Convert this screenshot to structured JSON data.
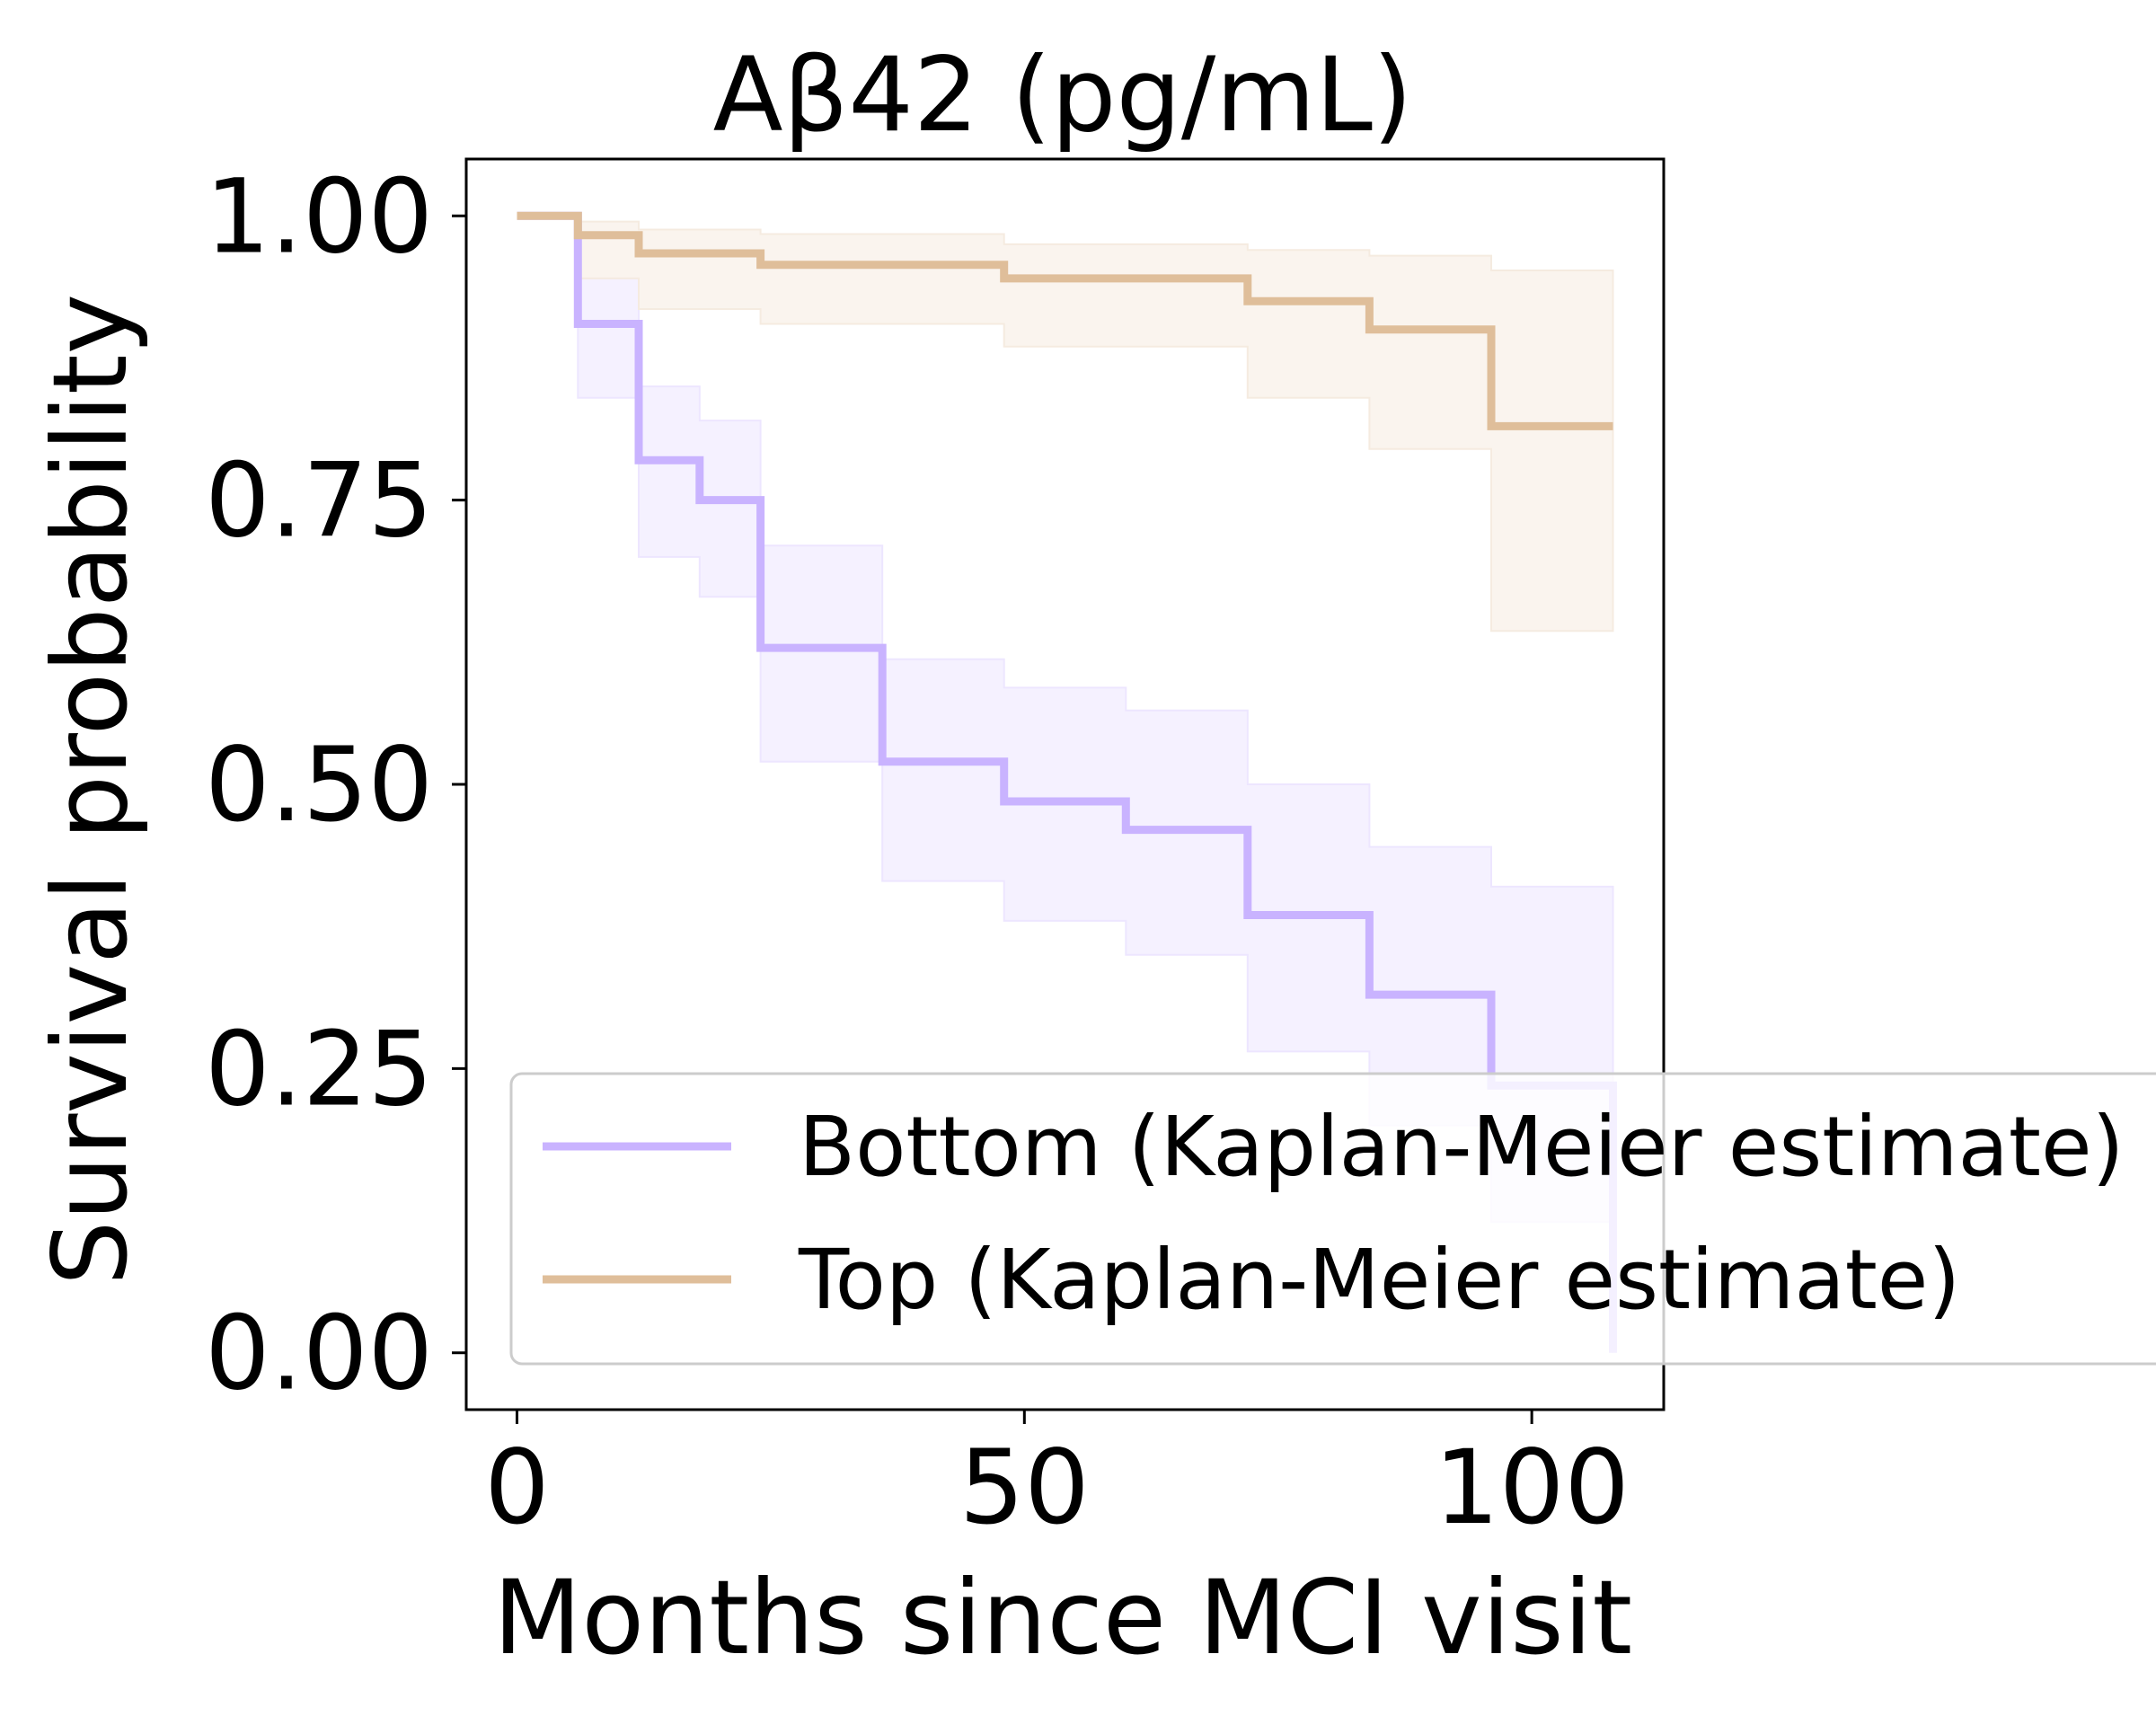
{
  "chart_data": {
    "type": "line",
    "title": "Aβ42 (pg/mL)",
    "xlabel": "Months since MCI visit",
    "ylabel": "Survival probability",
    "xlim": [
      -5,
      113
    ],
    "ylim": [
      -0.05,
      1.05
    ],
    "xticks": [
      0,
      50,
      100
    ],
    "xtick_labels": [
      "0",
      "50",
      "100"
    ],
    "yticks": [
      0.0,
      0.25,
      0.5,
      0.75,
      1.0
    ],
    "ytick_labels": [
      "0.00",
      "0.25",
      "0.50",
      "0.75",
      "1.00"
    ],
    "grid": false,
    "legend_position": "lower-right",
    "series": [
      {
        "name": "Bottom (Kaplan-Meier estimate)",
        "color": "#c9b3ff",
        "ci_color": "#ede6ff",
        "x": [
          0,
          6,
          12,
          18,
          24,
          36,
          48,
          60,
          72,
          84,
          96,
          108
        ],
        "y": [
          1.0,
          0.905,
          0.785,
          0.75,
          0.62,
          0.52,
          0.485,
          0.46,
          0.385,
          0.315,
          0.235,
          0.0
        ],
        "ci_lower": [
          1.0,
          0.84,
          0.7,
          0.665,
          0.52,
          0.415,
          0.38,
          0.35,
          0.265,
          0.2,
          0.115,
          0.0
        ],
        "ci_upper": [
          1.0,
          0.945,
          0.85,
          0.82,
          0.71,
          0.61,
          0.585,
          0.565,
          0.5,
          0.445,
          0.41,
          0.41
        ]
      },
      {
        "name": "Top (Kaplan-Meier estimate)",
        "color": "#dfbe9a",
        "ci_color": "#f5ebe0",
        "x": [
          0,
          6,
          12,
          24,
          48,
          72,
          84,
          96,
          108
        ],
        "y": [
          1.0,
          0.983,
          0.967,
          0.957,
          0.945,
          0.925,
          0.9,
          0.815,
          0.815
        ],
        "ci_lower": [
          1.0,
          0.945,
          0.918,
          0.905,
          0.885,
          0.84,
          0.795,
          0.635,
          0.635
        ],
        "ci_upper": [
          1.0,
          0.995,
          0.988,
          0.984,
          0.975,
          0.97,
          0.965,
          0.952,
          0.912
        ]
      }
    ]
  }
}
